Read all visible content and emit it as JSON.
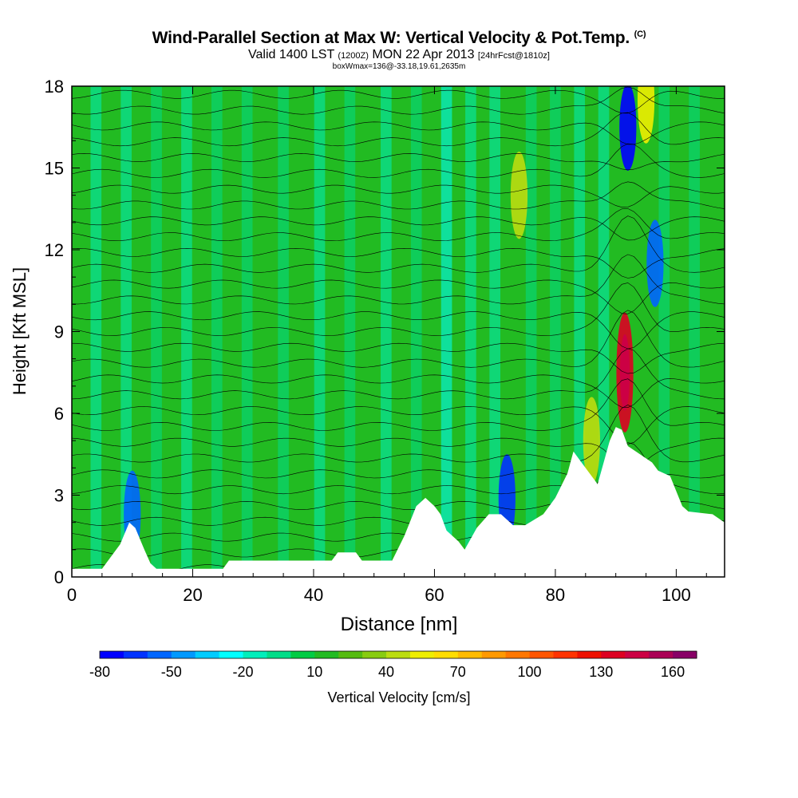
{
  "title": {
    "main": "Wind-Parallel Section at Max W: Vertical Velocity & Pot.Temp.",
    "copyright": "(C)",
    "valid_prefix": "Valid 1400 LST",
    "valid_utc": "(1200Z)",
    "valid_date": "MON 22 Apr 2013",
    "forecast": "[24hrFcst@1810z]",
    "box": "boxWmax=136@-33.18,19.61,2635m"
  },
  "chart_data": {
    "type": "heatmap",
    "xlabel": "Distance [nm]",
    "ylabel": "Height [Kft MSL]",
    "xlim": [
      0,
      108
    ],
    "ylim": [
      0,
      18
    ],
    "x_ticks": [
      0,
      20,
      40,
      60,
      80,
      100
    ],
    "y_ticks": [
      0,
      3,
      6,
      9,
      12,
      15,
      18
    ],
    "colorbar": {
      "label": "Vertical Velocity [cm/s]",
      "tick_labels": [
        "-80",
        "-50",
        "-20",
        "10",
        "40",
        "70",
        "100",
        "130",
        "160"
      ],
      "levels": [
        -80,
        -70,
        -60,
        -50,
        -40,
        -30,
        -20,
        -10,
        0,
        10,
        20,
        30,
        40,
        50,
        60,
        70,
        80,
        90,
        100,
        110,
        120,
        130,
        140,
        150,
        160,
        170
      ],
      "colors": [
        "#0000ff",
        "#0033ff",
        "#0066ff",
        "#0099ff",
        "#00ccff",
        "#00ffff",
        "#00eebb",
        "#00dd88",
        "#00cc44",
        "#22bb22",
        "#55bb11",
        "#88cc11",
        "#bbdd11",
        "#eeee00",
        "#ffdd00",
        "#ffbb00",
        "#ff9900",
        "#ff7700",
        "#ff5500",
        "#ff3300",
        "#ee1100",
        "#dd0022",
        "#cc0044",
        "#aa0055",
        "#880066"
      ]
    },
    "terrain_kft": [
      [
        0,
        0.3
      ],
      [
        5,
        0.3
      ],
      [
        8,
        1.2
      ],
      [
        9.5,
        2.0
      ],
      [
        10.5,
        1.8
      ],
      [
        12,
        1.0
      ],
      [
        13,
        0.5
      ],
      [
        14,
        0.3
      ],
      [
        25,
        0.3
      ],
      [
        26,
        0.6
      ],
      [
        43,
        0.6
      ],
      [
        44,
        0.9
      ],
      [
        47,
        0.9
      ],
      [
        48,
        0.6
      ],
      [
        53,
        0.6
      ],
      [
        55,
        1.5
      ],
      [
        57,
        2.6
      ],
      [
        58.5,
        2.9
      ],
      [
        60,
        2.6
      ],
      [
        61,
        2.3
      ],
      [
        62,
        1.7
      ],
      [
        64,
        1.3
      ],
      [
        65,
        1.0
      ],
      [
        67,
        1.8
      ],
      [
        69,
        2.3
      ],
      [
        71,
        2.3
      ],
      [
        73,
        1.9
      ],
      [
        75,
        1.9
      ],
      [
        78,
        2.3
      ],
      [
        80,
        2.9
      ],
      [
        82,
        3.8
      ],
      [
        83,
        4.6
      ],
      [
        84,
        4.3
      ],
      [
        86,
        3.7
      ],
      [
        87,
        3.4
      ],
      [
        88,
        4.2
      ],
      [
        89,
        5.0
      ],
      [
        90,
        5.5
      ],
      [
        91,
        5.4
      ],
      [
        92,
        4.8
      ],
      [
        94,
        4.5
      ],
      [
        96,
        4.2
      ],
      [
        97,
        3.9
      ],
      [
        99,
        3.7
      ],
      [
        101,
        2.6
      ],
      [
        102,
        2.4
      ],
      [
        106,
        2.3
      ],
      [
        108,
        2.0
      ]
    ],
    "features": [
      {
        "x": 91.5,
        "y": 7.5,
        "w": 130,
        "note": "max updraft"
      },
      {
        "x": 92,
        "y": 16.5,
        "w": -75
      },
      {
        "x": 96.5,
        "y": 11.5,
        "w": -60
      },
      {
        "x": 72,
        "y": 2.9,
        "w": -70
      },
      {
        "x": 10,
        "y": 2.3,
        "w": -60
      },
      {
        "x": 95,
        "y": 17.5,
        "w": 50
      },
      {
        "x": 74,
        "y": 14,
        "w": 45
      },
      {
        "x": 86,
        "y": 5,
        "w": 40
      }
    ]
  }
}
